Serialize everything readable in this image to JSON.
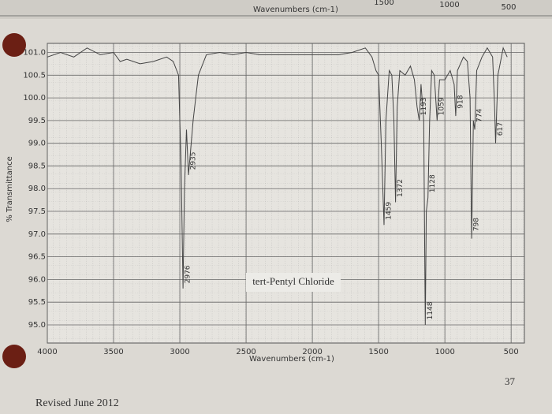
{
  "header_strip": {
    "label": "Wavenumbers (cm-1)",
    "ticks": [
      "1500",
      "1000",
      "500"
    ]
  },
  "chart_data": {
    "type": "line",
    "title": "tert-Pentyl Chloride",
    "x_label": "Wavenumbers (cm-1)",
    "y_label": "% Transmittance",
    "color": "#444444",
    "grid": true,
    "xlim": [
      4000,
      400
    ],
    "xticks": [
      4000,
      3500,
      3000,
      2500,
      2000,
      1500,
      1000,
      500
    ],
    "ylim": [
      94.6,
      101.2
    ],
    "yticks": [
      {
        "value": 95,
        "label": "95.0"
      },
      {
        "value": 95.5,
        "label": "95.5"
      },
      {
        "value": 96,
        "label": "96.0"
      },
      {
        "value": 96.5,
        "label": "96.5"
      },
      {
        "value": 97,
        "label": "97.0"
      },
      {
        "value": 97.5,
        "label": "97.5"
      },
      {
        "value": 98,
        "label": "98.0"
      },
      {
        "value": 98.5,
        "label": "98.5"
      },
      {
        "value": 99,
        "label": "99.0"
      },
      {
        "value": 99.5,
        "label": "99.5"
      },
      {
        "value": 100,
        "label": "100.0"
      },
      {
        "value": 100.5,
        "label": "100.5"
      },
      {
        "value": 101,
        "label": "101.0"
      }
    ],
    "x": [
      4000,
      3900,
      3800,
      3700,
      3600,
      3500,
      3450,
      3400,
      3300,
      3200,
      3100,
      3050,
      3010,
      2990,
      2976,
      2965,
      2950,
      2935,
      2920,
      2900,
      2880,
      2860,
      2800,
      2700,
      2600,
      2500,
      2400,
      2200,
      2000,
      1900,
      1800,
      1700,
      1600,
      1550,
      1520,
      1500,
      1480,
      1459,
      1445,
      1420,
      1400,
      1385,
      1372,
      1360,
      1340,
      1300,
      1260,
      1230,
      1210,
      1193,
      1180,
      1160,
      1148,
      1140,
      1128,
      1115,
      1100,
      1080,
      1059,
      1040,
      1000,
      960,
      930,
      918,
      905,
      860,
      830,
      810,
      798,
      785,
      774,
      760,
      720,
      680,
      640,
      625,
      617,
      600,
      560,
      530
    ],
    "values": [
      100.9,
      101.0,
      100.9,
      101.1,
      100.95,
      101.0,
      100.8,
      100.85,
      100.75,
      100.8,
      100.9,
      100.8,
      100.5,
      98.5,
      95.8,
      98.0,
      99.3,
      98.3,
      98.8,
      99.5,
      100.0,
      100.5,
      100.95,
      101.0,
      100.95,
      101.0,
      100.95,
      100.95,
      100.95,
      100.95,
      100.95,
      101.0,
      101.1,
      100.9,
      100.6,
      100.5,
      99.0,
      97.2,
      99.5,
      100.6,
      100.5,
      99.5,
      97.7,
      99.8,
      100.6,
      100.5,
      100.7,
      100.4,
      99.8,
      99.5,
      100.3,
      99.5,
      95.0,
      97.5,
      97.8,
      99.5,
      100.6,
      100.5,
      99.5,
      100.4,
      100.4,
      100.6,
      100.3,
      99.6,
      100.6,
      100.9,
      100.8,
      100.0,
      96.9,
      99.5,
      99.3,
      100.6,
      100.9,
      101.1,
      100.9,
      99.8,
      99.0,
      100.5,
      101.1,
      100.9
    ],
    "peak_labels": [
      2976,
      2935,
      1459,
      1372,
      1193,
      1148,
      1128,
      1059,
      918,
      798,
      774,
      617
    ]
  },
  "footer": {
    "revision": "Revised June 2012",
    "page_number": "37"
  }
}
